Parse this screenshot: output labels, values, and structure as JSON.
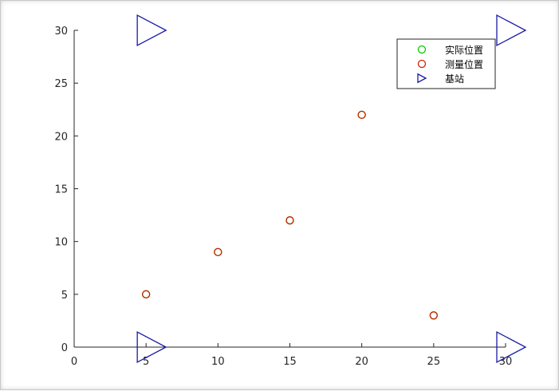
{
  "chart_data": {
    "type": "scatter",
    "xlim": [
      0,
      30
    ],
    "ylim": [
      0,
      30
    ],
    "x_ticks": [
      0,
      5,
      10,
      15,
      20,
      25,
      30
    ],
    "y_ticks": [
      0,
      5,
      10,
      15,
      20,
      25,
      30
    ],
    "grid": false,
    "legend_position": "top-right",
    "series": [
      {
        "name": "实际位置",
        "marker": "circle",
        "color": "#00cc00",
        "points": [
          [
            5,
            5
          ],
          [
            10,
            9
          ],
          [
            15,
            12
          ],
          [
            20,
            22
          ],
          [
            25,
            3
          ]
        ]
      },
      {
        "name": "测量位置",
        "marker": "circle",
        "color": "#cc2200",
        "points": [
          [
            5,
            5
          ],
          [
            10,
            9
          ],
          [
            15,
            12
          ],
          [
            20,
            22
          ],
          [
            25,
            3
          ]
        ]
      },
      {
        "name": "基站",
        "marker": "triangle-right",
        "color": "#1a1aa8",
        "points": [
          [
            5,
            30
          ],
          [
            30,
            30
          ],
          [
            5,
            0
          ],
          [
            30,
            0
          ]
        ]
      }
    ]
  }
}
